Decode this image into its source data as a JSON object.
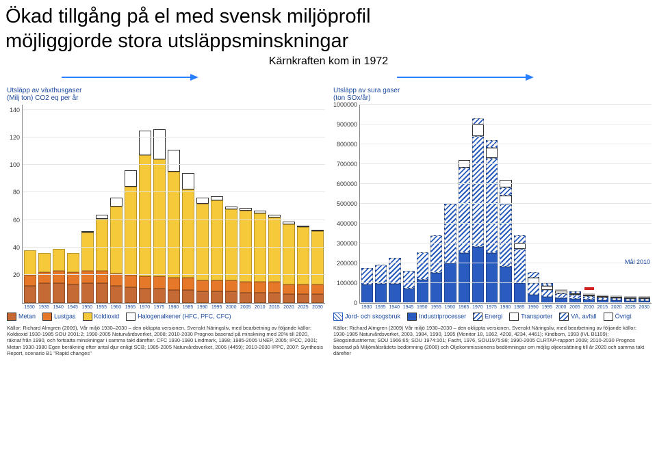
{
  "title_line_1": "Ökad tillgång på el med svensk miljöprofil",
  "title_line_2": "möjliggjorde stora utsläppsminskningar",
  "subtitle": "Kärnkraften kom in 1972",
  "arrow_color": "#2a7fff",
  "left_chart": {
    "type": "stacked-bar",
    "y_title_line1": "Utsläpp av växthusgaser",
    "y_title_line2": "(Milj ton) CO2 eq per år",
    "ylim": [
      0,
      144
    ],
    "yticks": [
      20,
      40,
      60,
      80,
      100,
      120,
      140
    ],
    "categories": [
      "1930",
      "1935",
      "1940",
      "1945",
      "1950",
      "1955",
      "1960",
      "1965",
      "1970",
      "1975",
      "1980",
      "1985",
      "1990",
      "1995",
      "2000",
      "2005",
      "2010",
      "2015",
      "2020",
      "2025",
      "2030"
    ],
    "series": [
      {
        "name": "Metan",
        "fill": "#c66a35",
        "pattern": "solid"
      },
      {
        "name": "Lustgas",
        "fill": "#e6782a",
        "pattern": "solid"
      },
      {
        "name": "Koldioxid",
        "fill": "#f5c93a",
        "pattern": "solid"
      },
      {
        "name": "Halogenalkener (HFC, PFC, CFC)",
        "fill": "#ffffff",
        "pattern": "outline"
      }
    ],
    "stacks": [
      [
        12,
        8,
        18,
        0
      ],
      [
        14,
        8,
        14,
        0
      ],
      [
        14,
        9,
        16,
        0
      ],
      [
        13,
        9,
        14,
        0
      ],
      [
        14,
        9,
        28,
        1
      ],
      [
        14,
        9,
        38,
        3
      ],
      [
        12,
        9,
        49,
        6
      ],
      [
        11,
        9,
        64,
        12
      ],
      [
        10,
        9,
        88,
        18
      ],
      [
        10,
        9,
        85,
        22
      ],
      [
        9,
        9,
        77,
        16
      ],
      [
        9,
        9,
        64,
        12
      ],
      [
        8,
        8,
        56,
        4
      ],
      [
        8,
        8,
        58,
        3
      ],
      [
        8,
        8,
        52,
        2
      ],
      [
        7,
        8,
        52,
        2
      ],
      [
        7,
        8,
        50,
        2
      ],
      [
        7,
        8,
        47,
        2
      ],
      [
        6,
        7,
        44,
        2
      ],
      [
        6,
        7,
        42,
        1
      ],
      [
        6,
        7,
        39,
        1
      ]
    ],
    "legend_labels": [
      "Metan",
      "Lustgas",
      "Koldioxid",
      "Halogenalkener (HFC, PFC, CFC)"
    ],
    "sources": "Källor: Richard Almgren (2009), Vår miljö 1930–2030 – den oklippta versionen, Svenskt Näringsliv, med bearbetning av följande källor: Koldioxid 1930-1985 SOU 2001:2; 1990-2005 Naturvårdsverket, 2008; 2010-2030 Prognos baserad på minskning med 20% till 2020, räknat från 1990, och fortsatta minskningar i samma takt därefter. CFC 1930-1980 Lindmark, 1998; 1985-2005 UNEP, 2005; IPCC, 2001; Metan 1930-1980 Egen beräkning efter antal djur enligt SCB; 1985-2005 Naturvårdsverket, 2006 (4459); 2010-2030 IPPC, 2007: Synthesis Report, scenario B1 \"Rapid changes\""
  },
  "right_chart": {
    "type": "stacked-bar",
    "y_title_line1": "Utsläpp av sura gaser",
    "y_title_line2": "(ton SOx/år)",
    "ylim": [
      0,
      1000000
    ],
    "yticks": [
      0,
      100000,
      200000,
      300000,
      400000,
      500000,
      600000,
      700000,
      800000,
      900000,
      1000000
    ],
    "categories": [
      "1930",
      "1935",
      "1940",
      "1945",
      "1950",
      "1955",
      "1960",
      "1965",
      "1970",
      "1975",
      "1980",
      "1985",
      "1990",
      "1995",
      "2000",
      "2005",
      "2010",
      "2015",
      "2020",
      "2025",
      "2030"
    ],
    "series": [
      {
        "name": "Jord- och skogsbruk",
        "fill": "#ffffff",
        "pattern": "hatch-white",
        "border": "#2a5bbf"
      },
      {
        "name": "Industriprocesser",
        "fill": "#2a5bbf",
        "pattern": "solid"
      },
      {
        "name": "Energi",
        "fill": "#5d8ee6",
        "pattern": "hatch-blue"
      },
      {
        "name": "Transporter",
        "fill": "#ffffff",
        "pattern": "outline"
      },
      {
        "name": "VA, avfall",
        "fill": "#3c6fc7",
        "pattern": "hatch-blue"
      },
      {
        "name": "Övrigt",
        "fill": "#ffffff",
        "pattern": "outline"
      }
    ],
    "stacks": [
      [
        0,
        90000,
        85000,
        0,
        0,
        0
      ],
      [
        0,
        95000,
        95000,
        0,
        0,
        0
      ],
      [
        0,
        95000,
        130000,
        0,
        0,
        0
      ],
      [
        0,
        70000,
        90000,
        0,
        0,
        0
      ],
      [
        0,
        115000,
        140000,
        0,
        0,
        0
      ],
      [
        0,
        150000,
        190000,
        0,
        0,
        0
      ],
      [
        0,
        200000,
        300000,
        0,
        0,
        0
      ],
      [
        0,
        250000,
        430000,
        40000,
        0,
        0
      ],
      [
        0,
        280000,
        560000,
        60000,
        30000,
        0
      ],
      [
        0,
        250000,
        480000,
        50000,
        40000,
        0
      ],
      [
        0,
        180000,
        320000,
        40000,
        40000,
        40000
      ],
      [
        0,
        100000,
        170000,
        30000,
        40000,
        0
      ],
      [
        0,
        40000,
        60000,
        25000,
        30000,
        0
      ],
      [
        0,
        30000,
        35000,
        20000,
        15000,
        0
      ],
      [
        0,
        22000,
        25000,
        12000,
        10000,
        0
      ],
      [
        0,
        18000,
        20000,
        10000,
        8000,
        0
      ],
      [
        0,
        15000,
        17000,
        8000,
        6000,
        0
      ],
      [
        0,
        13000,
        14000,
        6000,
        5000,
        0
      ],
      [
        0,
        11000,
        11000,
        5000,
        5000,
        0
      ],
      [
        0,
        10000,
        10000,
        4000,
        4000,
        0
      ],
      [
        0,
        9000,
        9000,
        4000,
        3000,
        0
      ]
    ],
    "mal_label": "Mål 2010",
    "mal_y": 65000,
    "mal_x_index": 16,
    "legend_labels": [
      "Jord- och skogsbruk",
      "Industriprocesser",
      "Energi",
      "Transporter",
      "VA, avfall",
      "Övrigt"
    ],
    "sources": "Källor: Richard Almgren (2009) Vår miljö 1930–2030 – den oklippta versionen, Svenskt Näringsliv, med bearbetning av följande källor: 1930-1985 Naturvårdsverket, 2003, 1984, 1990, 1995 (Monitor 18, 1862, 4208, 4234, 4461); Kindbom, 1993 (IVL B1109); Skogsindustrierna; SOU 1966:65; SOU 1974:101; Facht, 1976, SOU1975:98; 1990-2005 CLRTAP-rapport 2009; 2010-2030 Prognos baserad på Miljömålsrådets bedömning (2008) och Oljekommissionens bedömningar om möjlig oljeersättning till år 2020 och samma takt därefter"
  }
}
